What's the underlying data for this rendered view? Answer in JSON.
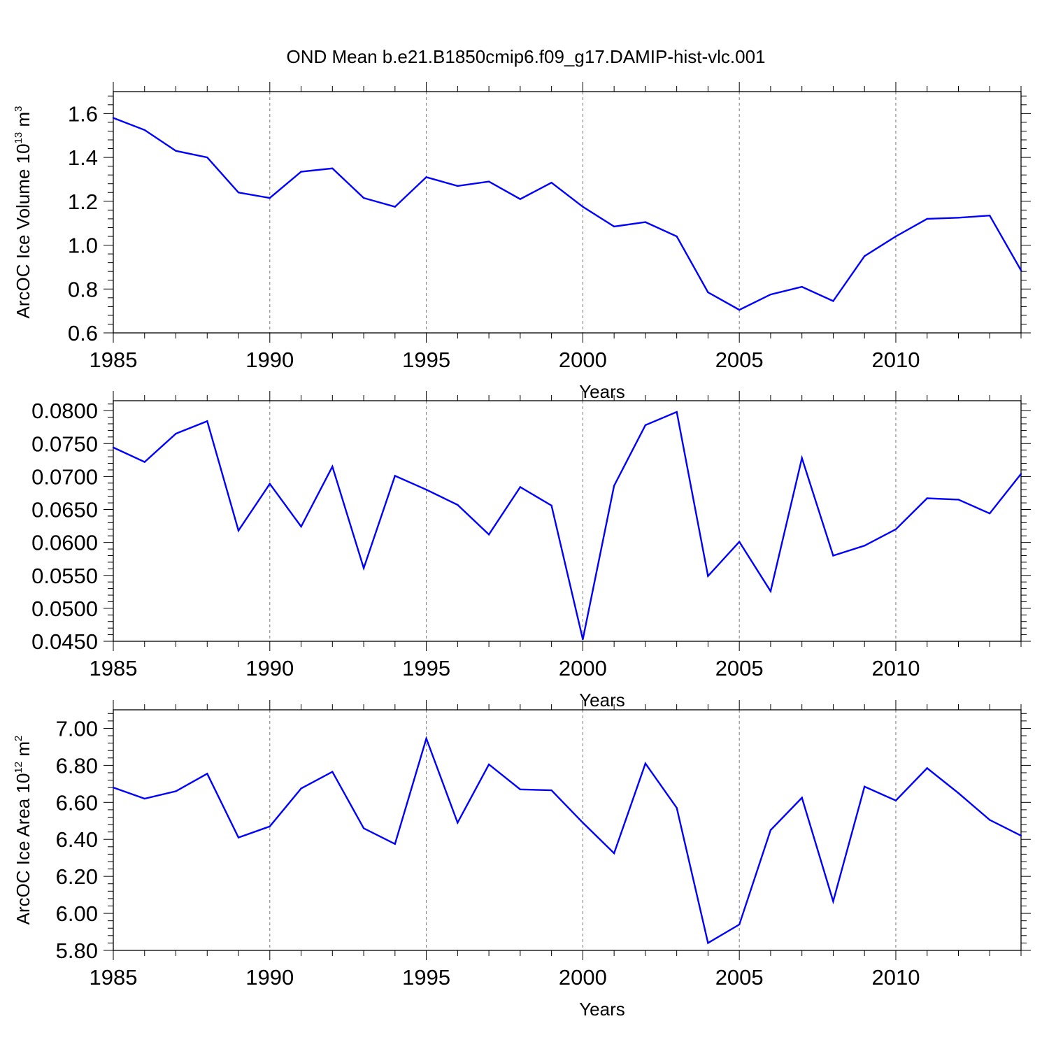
{
  "title": "OND Mean b.e21.B1850cmip6.f09_g17.DAMIP-hist-vlc.001",
  "colors": {
    "line": "#0000ff",
    "axis": "#000000",
    "grid": "#777777"
  },
  "chart_data": [
    {
      "type": "line",
      "ylabel_main": "ArcOC Ice Volume 10",
      "ylabel_exp": "13",
      "ylabel_unit": " m",
      "ylabel_unit_exp": "3",
      "xlabel": "Years",
      "xlim": [
        1985,
        2014
      ],
      "ylim": [
        0.6,
        1.7
      ],
      "x_ticks": [
        "1985",
        "1990",
        "1995",
        "2000",
        "2005",
        "2010"
      ],
      "y_ticks": [
        "0.6",
        "0.8",
        "1.0",
        "1.2",
        "1.4",
        "1.6"
      ],
      "x": [
        1985,
        1986,
        1987,
        1988,
        1989,
        1990,
        1991,
        1992,
        1993,
        1994,
        1995,
        1996,
        1997,
        1998,
        1999,
        2000,
        2001,
        2002,
        2003,
        2004,
        2005,
        2006,
        2007,
        2008,
        2009,
        2010,
        2011,
        2012,
        2013,
        2014
      ],
      "values": [
        1.58,
        1.525,
        1.43,
        1.4,
        1.24,
        1.215,
        1.335,
        1.35,
        1.215,
        1.175,
        1.31,
        1.27,
        1.29,
        1.21,
        1.285,
        1.175,
        1.085,
        1.105,
        1.04,
        0.785,
        0.705,
        0.775,
        0.81,
        0.745,
        0.95,
        1.04,
        1.12,
        1.125,
        1.135,
        0.885
      ]
    },
    {
      "type": "line",
      "ylabel_main": "",
      "xlabel": "Years",
      "xlim": [
        1985,
        2014
      ],
      "ylim": [
        0.045,
        0.0815
      ],
      "x_ticks": [
        "1985",
        "1990",
        "1995",
        "2000",
        "2005",
        "2010"
      ],
      "y_ticks": [
        "0.0450",
        "0.0500",
        "0.0550",
        "0.0600",
        "0.0650",
        "0.0700",
        "0.0750",
        "0.0800"
      ],
      "x": [
        1985,
        1986,
        1987,
        1988,
        1989,
        1990,
        1991,
        1992,
        1993,
        1994,
        1995,
        1996,
        1997,
        1998,
        1999,
        2000,
        2001,
        2002,
        2003,
        2004,
        2005,
        2006,
        2007,
        2008,
        2009,
        2010,
        2011,
        2012,
        2013,
        2014
      ],
      "values": [
        0.0744,
        0.0722,
        0.0765,
        0.0784,
        0.0618,
        0.0689,
        0.0624,
        0.0715,
        0.0561,
        0.0701,
        0.068,
        0.0657,
        0.0612,
        0.0684,
        0.0656,
        0.0453,
        0.0686,
        0.0778,
        0.0798,
        0.0549,
        0.0601,
        0.0526,
        0.0728,
        0.058,
        0.0595,
        0.062,
        0.0667,
        0.0665,
        0.0644,
        0.0704
      ]
    },
    {
      "type": "line",
      "ylabel_main": "ArcOC Ice Area 10",
      "ylabel_exp": "12",
      "ylabel_unit": " m",
      "ylabel_unit_exp": "2",
      "xlabel": "Years",
      "xlim": [
        1985,
        2014
      ],
      "ylim": [
        5.8,
        7.1
      ],
      "x_ticks": [
        "1985",
        "1990",
        "1995",
        "2000",
        "2005",
        "2010"
      ],
      "y_ticks": [
        "5.80",
        "6.00",
        "6.20",
        "6.40",
        "6.60",
        "6.80",
        "7.00"
      ],
      "x": [
        1985,
        1986,
        1987,
        1988,
        1989,
        1990,
        1991,
        1992,
        1993,
        1994,
        1995,
        1996,
        1997,
        1998,
        1999,
        2000,
        2001,
        2002,
        2003,
        2004,
        2005,
        2006,
        2007,
        2008,
        2009,
        2010,
        2011,
        2012,
        2013,
        2014
      ],
      "values": [
        6.68,
        6.62,
        6.66,
        6.755,
        6.41,
        6.47,
        6.675,
        6.765,
        6.46,
        6.375,
        6.945,
        6.49,
        6.805,
        6.67,
        6.665,
        6.49,
        6.325,
        6.81,
        6.57,
        5.84,
        5.94,
        6.45,
        6.625,
        6.065,
        6.685,
        6.61,
        6.785,
        6.65,
        6.505,
        6.42
      ]
    }
  ]
}
